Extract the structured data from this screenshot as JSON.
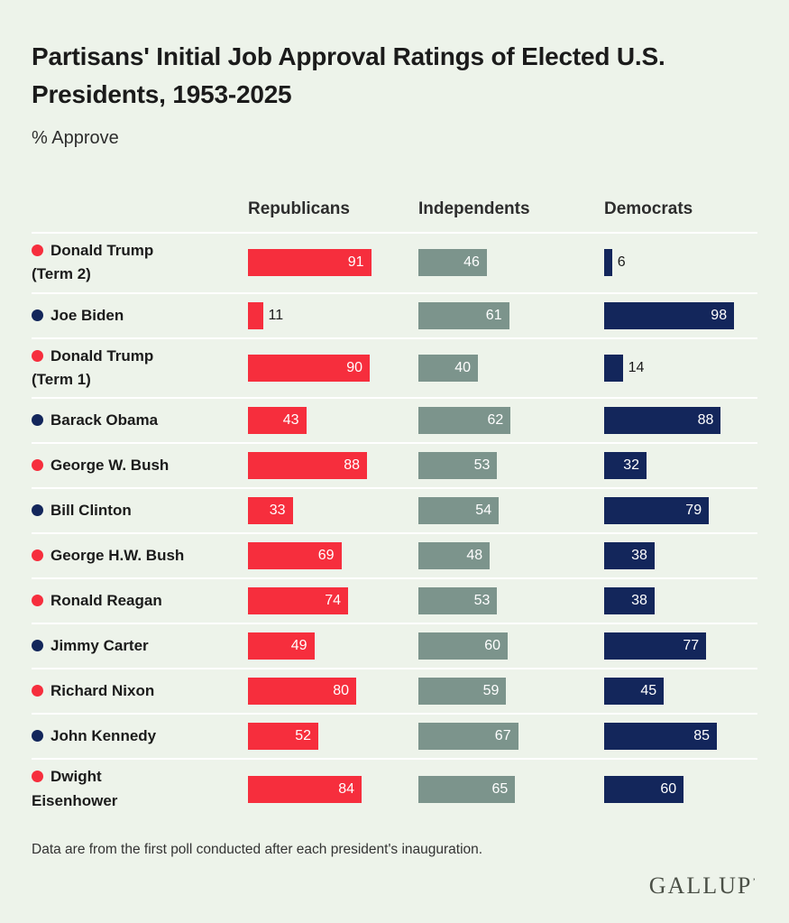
{
  "title_lines": [
    "Partisans' Initial Job Approval Ratings of Elected U.S.",
    "Presidents, 1953-2025"
  ],
  "footnote": "Data are from the first poll conducted after each president's inauguration.",
  "brand": "GALLUP",
  "brand_mark": "’",
  "colors": {
    "background": "#edf3ea",
    "republican_bar": "#f62e3d",
    "independent_bar": "#7c948c",
    "democrat_bar": "#13265b",
    "value_in_bar": "#ffffff",
    "value_outside": "#1a1a1a",
    "row_divider": "#ffffff"
  },
  "chart_data": {
    "type": "bar",
    "orientation": "horizontal",
    "title": "Partisans' Initial Job Approval Ratings of Elected U.S. Presidents, 1953-2025",
    "subtitle": "% Approve",
    "unit": "% approve",
    "xlim": [
      0,
      100
    ],
    "columns": [
      "Republicans",
      "Independents",
      "Democrats"
    ],
    "rows": [
      {
        "president": "Donald Trump (Term 2)",
        "name_lines": [
          "Donald Trump",
          "(Term 2)"
        ],
        "party": "R",
        "values": [
          91,
          46,
          6
        ]
      },
      {
        "president": "Joe Biden",
        "name_lines": [
          "Joe Biden"
        ],
        "party": "D",
        "values": [
          11,
          61,
          98
        ]
      },
      {
        "president": "Donald Trump (Term 1)",
        "name_lines": [
          "Donald Trump",
          "(Term 1)"
        ],
        "party": "R",
        "values": [
          90,
          40,
          14
        ]
      },
      {
        "president": "Barack Obama",
        "name_lines": [
          "Barack Obama"
        ],
        "party": "D",
        "values": [
          43,
          62,
          88
        ]
      },
      {
        "president": "George W. Bush",
        "name_lines": [
          "George W. Bush"
        ],
        "party": "R",
        "values": [
          88,
          53,
          32
        ]
      },
      {
        "president": "Bill Clinton",
        "name_lines": [
          "Bill Clinton"
        ],
        "party": "D",
        "values": [
          33,
          54,
          79
        ]
      },
      {
        "president": "George H.W. Bush",
        "name_lines": [
          "George H.W. Bush"
        ],
        "party": "R",
        "values": [
          69,
          48,
          38
        ]
      },
      {
        "president": "Ronald Reagan",
        "name_lines": [
          "Ronald Reagan"
        ],
        "party": "R",
        "values": [
          74,
          53,
          38
        ]
      },
      {
        "president": "Jimmy Carter",
        "name_lines": [
          "Jimmy Carter"
        ],
        "party": "D",
        "values": [
          49,
          60,
          77
        ]
      },
      {
        "president": "Richard Nixon",
        "name_lines": [
          "Richard Nixon"
        ],
        "party": "R",
        "values": [
          80,
          59,
          45
        ]
      },
      {
        "president": "John Kennedy",
        "name_lines": [
          "John Kennedy"
        ],
        "party": "D",
        "values": [
          52,
          67,
          85
        ]
      },
      {
        "president": "Dwight Eisenhower",
        "name_lines": [
          "Dwight",
          "Eisenhower"
        ],
        "party": "R",
        "values": [
          84,
          65,
          60
        ]
      }
    ]
  }
}
